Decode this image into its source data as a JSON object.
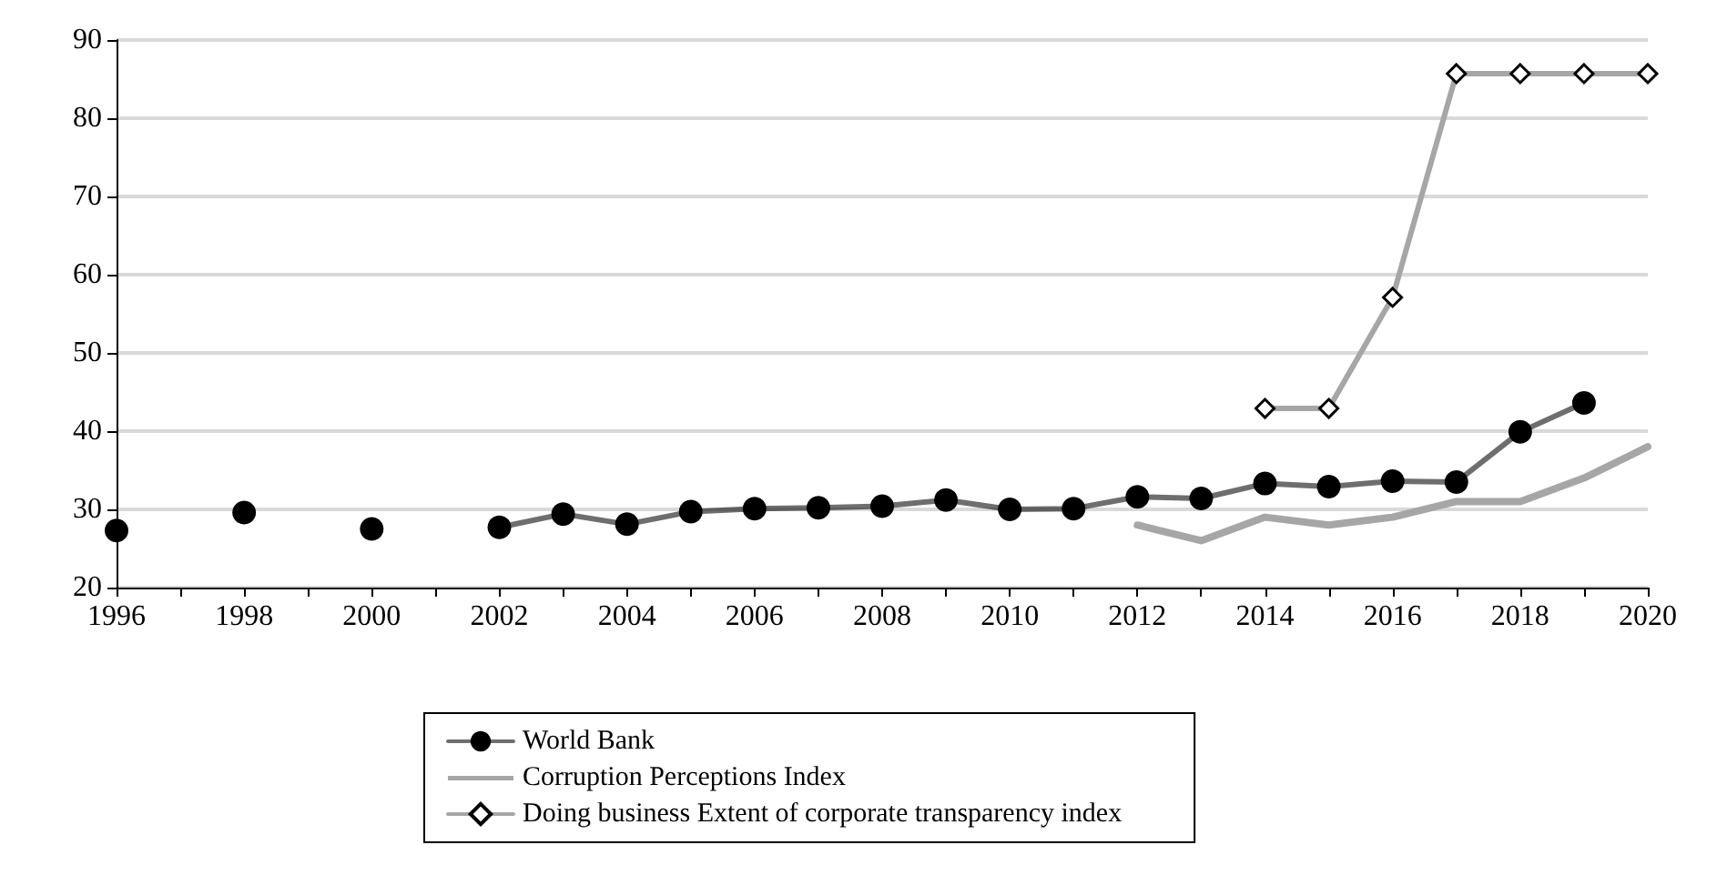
{
  "chart_data": {
    "type": "line",
    "x": [
      1996,
      1997,
      1998,
      1999,
      2000,
      2001,
      2002,
      2003,
      2004,
      2005,
      2006,
      2007,
      2008,
      2009,
      2010,
      2011,
      2012,
      2013,
      2014,
      2015,
      2016,
      2017,
      2018,
      2019,
      2020
    ],
    "series": [
      {
        "name": "World Bank",
        "color": "#000000",
        "marker": "circle",
        "values": [
          27.3,
          null,
          29.6,
          null,
          27.5,
          null,
          27.7,
          29.4,
          28.1,
          29.7,
          30.1,
          30.2,
          30.4,
          31.2,
          30.0,
          30.1,
          31.6,
          31.4,
          33.3,
          32.9,
          33.6,
          33.5,
          39.9,
          43.6,
          null
        ]
      },
      {
        "name": "Corruption Perceptions Index",
        "color": "#a6a6a6",
        "marker": "none",
        "values": [
          null,
          null,
          null,
          null,
          null,
          null,
          null,
          null,
          null,
          null,
          null,
          null,
          null,
          null,
          null,
          null,
          28,
          26,
          29,
          28,
          29,
          31,
          31,
          34,
          38
        ]
      },
      {
        "name": "Doing business Extent of corporate transparency index",
        "color": "#a6a6a6",
        "marker": "diamond",
        "values": [
          null,
          null,
          null,
          null,
          null,
          null,
          null,
          null,
          null,
          null,
          null,
          null,
          null,
          null,
          null,
          null,
          null,
          null,
          42.9,
          42.9,
          57.1,
          85.7,
          85.7,
          85.7,
          85.7
        ]
      }
    ],
    "xlim": [
      1996,
      2020
    ],
    "xticks": [
      1996,
      {
        "value": 1997,
        "label": null
      },
      1998,
      {
        "value": 1999,
        "label": null
      },
      2000,
      {
        "value": 2001,
        "label": null
      },
      2002,
      {
        "value": 2003,
        "label": null
      },
      2004,
      {
        "value": 2005,
        "label": null
      },
      2006,
      {
        "value": 2007,
        "label": null
      },
      2008,
      {
        "value": 2009,
        "label": null
      },
      2010,
      {
        "value": 2011,
        "label": null
      },
      2012,
      {
        "value": 2013,
        "label": null
      },
      2014,
      {
        "value": 2015,
        "label": null
      },
      2016,
      {
        "value": 2017,
        "label": null
      },
      2018,
      {
        "value": 2019,
        "label": null
      },
      2020
    ],
    "ylim": [
      20,
      90
    ],
    "yticks": [
      20,
      30,
      40,
      50,
      60,
      70,
      80,
      90
    ],
    "grid": "y",
    "legend": "bottom",
    "line_style": "solid"
  }
}
